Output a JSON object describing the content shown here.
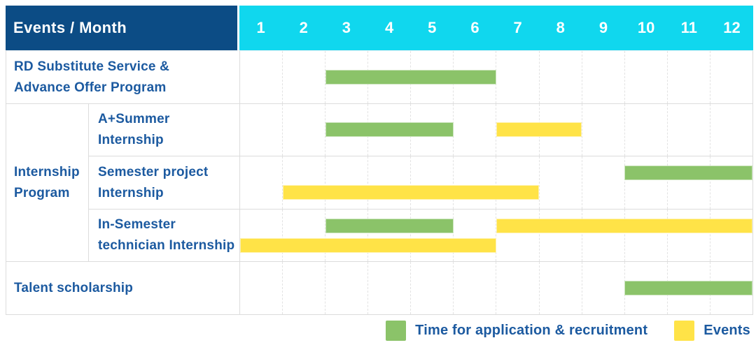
{
  "header": {
    "label": "Events / Month",
    "months": [
      "1",
      "2",
      "3",
      "4",
      "5",
      "6",
      "7",
      "8",
      "9",
      "10",
      "11",
      "12"
    ]
  },
  "colors": {
    "header_bg": "#0c4c85",
    "months_bg": "#10d7ee",
    "green": "#8bc369",
    "yellow": "#ffe347",
    "text_blue": "#1c5aa0"
  },
  "group": {
    "label": [
      "Internship",
      "Program"
    ]
  },
  "legend": [
    {
      "type": "application",
      "label": "Time for application & recruitment"
    },
    {
      "type": "events",
      "label": "Events"
    }
  ],
  "chart_data": {
    "type": "gantt",
    "title": "Events / Month",
    "x_axis": {
      "unit": "month",
      "min": 1,
      "max": 12,
      "ticks": [
        "1",
        "2",
        "3",
        "4",
        "5",
        "6",
        "7",
        "8",
        "9",
        "10",
        "11",
        "12"
      ]
    },
    "legend": {
      "application": "Time for application & recruitment",
      "events": "Events"
    },
    "rows": [
      {
        "id": "rd-substitute",
        "label": [
          "RD Substitute Service &",
          "Advance Offer Program"
        ],
        "group": null,
        "bars": [
          [
            {
              "type": "application",
              "start": 3,
              "end": 6
            }
          ]
        ]
      },
      {
        "id": "a-plus-summer",
        "label": [
          "A+Summer",
          "Internship"
        ],
        "group": "Internship Program",
        "bars": [
          [
            {
              "type": "application",
              "start": 3,
              "end": 5
            },
            {
              "type": "events",
              "start": 7,
              "end": 8
            }
          ]
        ]
      },
      {
        "id": "semester-project",
        "label": [
          "Semester project",
          "Internship"
        ],
        "group": "Internship Program",
        "bars": [
          [
            {
              "type": "application",
              "start": 10,
              "end": 12
            }
          ],
          [
            {
              "type": "events",
              "start": 2,
              "end": 7
            }
          ]
        ]
      },
      {
        "id": "in-semester-technician",
        "label": [
          "In-Semester",
          "technician Internship"
        ],
        "group": "Internship Program",
        "bars": [
          [
            {
              "type": "application",
              "start": 3,
              "end": 5
            },
            {
              "type": "events",
              "start": 7,
              "end": 12
            }
          ],
          [
            {
              "type": "events",
              "start": 1,
              "end": 6
            }
          ]
        ]
      },
      {
        "id": "talent-scholarship",
        "label": "Talent scholarship",
        "group": null,
        "bars": [
          [
            {
              "type": "application",
              "start": 10,
              "end": 12
            }
          ]
        ]
      }
    ]
  }
}
